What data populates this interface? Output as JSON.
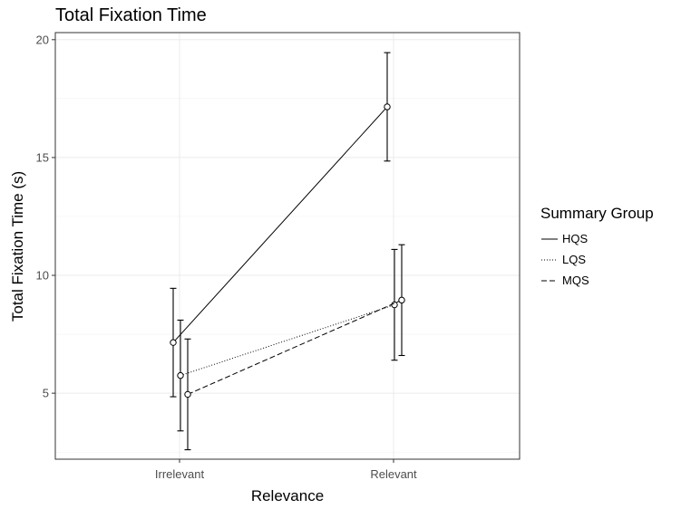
{
  "chart_data": {
    "type": "line",
    "title": "Total Fixation Time",
    "xlabel": "Relevance",
    "ylabel": "Total Fixation Time (s)",
    "categories": [
      "Irrelevant",
      "Relevant"
    ],
    "ylim": [
      2.2,
      20.3
    ],
    "yticks": [
      5,
      10,
      15,
      20
    ],
    "grid": true,
    "legend_title": "Summary Group",
    "legend_position": "right",
    "series": [
      {
        "name": "HQS",
        "dash": "solid",
        "values": [
          7.15,
          17.15
        ],
        "err_low": [
          4.85,
          14.85
        ],
        "err_high": [
          9.45,
          19.45
        ]
      },
      {
        "name": "LQS",
        "dash": "dotted",
        "values": [
          5.75,
          8.75
        ],
        "err_low": [
          3.4,
          6.4
        ],
        "err_high": [
          8.1,
          11.1
        ]
      },
      {
        "name": "MQS",
        "dash": "dashed",
        "values": [
          4.95,
          8.95
        ],
        "err_low": [
          2.6,
          6.6
        ],
        "err_high": [
          7.3,
          11.3
        ]
      }
    ]
  }
}
